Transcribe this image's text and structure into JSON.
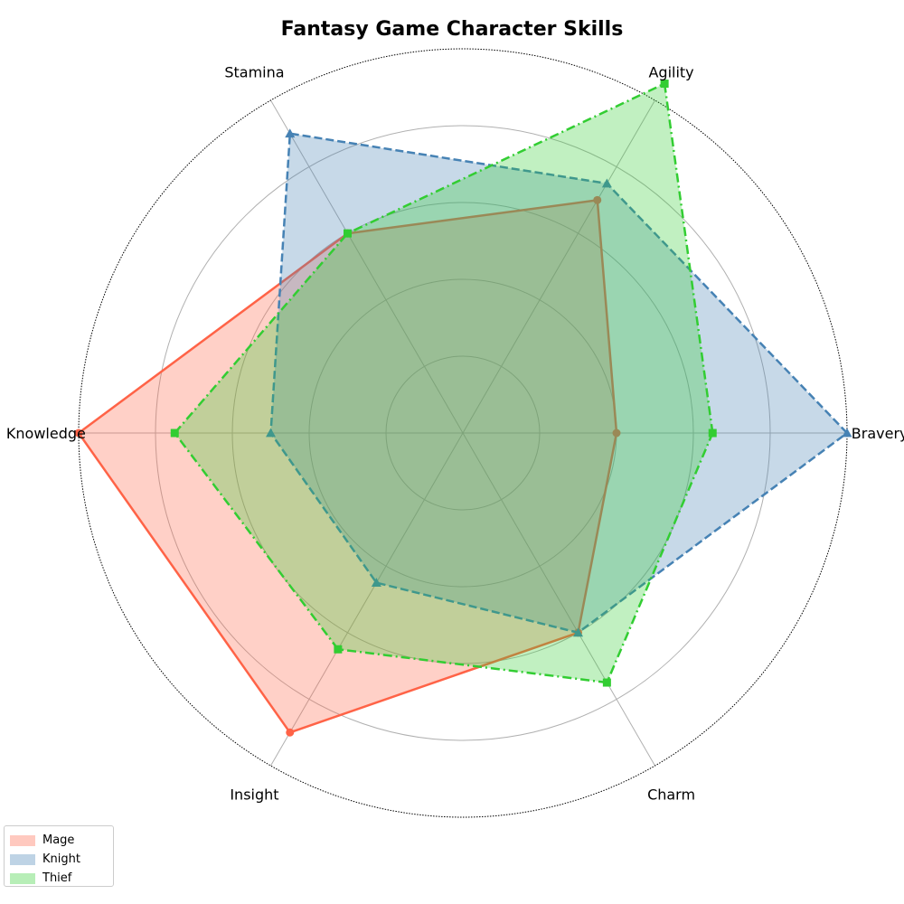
{
  "chart_data": {
    "type": "radar",
    "title": "Fantasy Game Character Skills",
    "axes": [
      "Bravery",
      "Agility",
      "Stamina",
      "Knowledge",
      "Insight",
      "Charm"
    ],
    "rlim": [
      0,
      10
    ],
    "ring_ticks": [
      2,
      4,
      6,
      8,
      10
    ],
    "grid": true,
    "legend_position": "bottom-left",
    "series": [
      {
        "name": "Mage",
        "values": [
          4,
          7,
          6,
          10,
          9,
          6
        ],
        "color": "#ff6347",
        "line_style": "solid",
        "marker": "circle"
      },
      {
        "name": "Knight",
        "values": [
          10,
          7.5,
          9,
          5,
          4.5,
          6
        ],
        "color": "#4682b4",
        "line_style": "dashed",
        "marker": "triangle"
      },
      {
        "name": "Thief",
        "values": [
          6.5,
          10.5,
          6,
          7.5,
          6.5,
          7.5
        ],
        "color": "#32cd32",
        "line_style": "dashdot",
        "marker": "square"
      }
    ]
  }
}
